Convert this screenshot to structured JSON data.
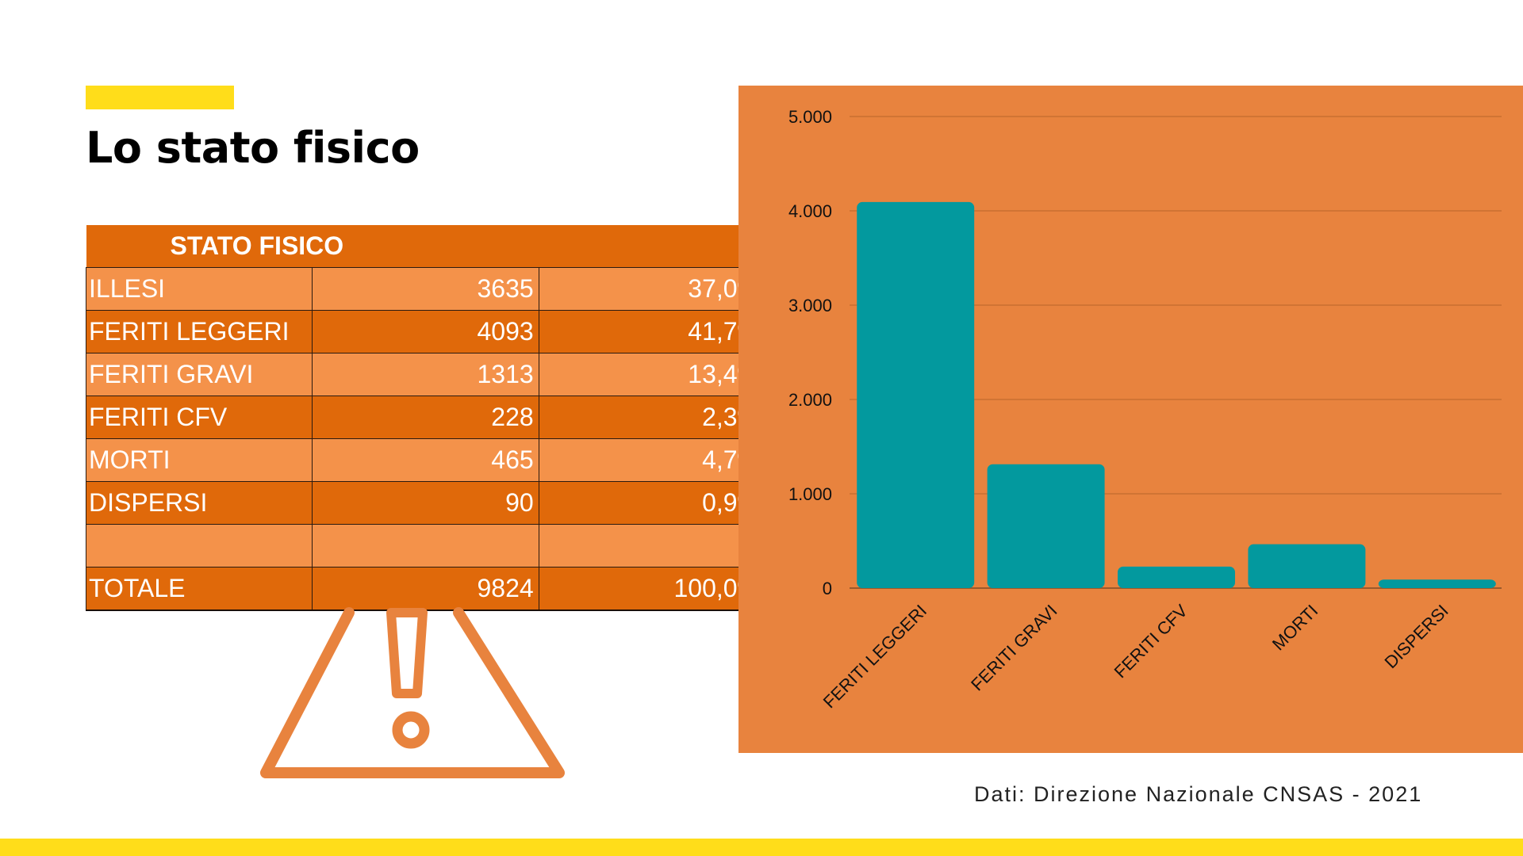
{
  "page": {
    "title": "Lo stato fisico",
    "source_note": "Dati: Direzione Nazionale CNSAS - 2021"
  },
  "colors": {
    "accent_yellow": "#FFDD1A",
    "table_header": "#E0690A",
    "row_light": "#F4924A",
    "row_dark": "#E0690A",
    "chart_bg": "#E8833E",
    "bar": "#03999E",
    "warning": "#E8833E"
  },
  "icons": {
    "warning": "warning-triangle-icon"
  },
  "table": {
    "header": "STATO FISICO",
    "rows": [
      {
        "label": "ILLESI",
        "count": "3635",
        "percent": "37,0%"
      },
      {
        "label": "FERITI LEGGERI",
        "count": "4093",
        "percent": "41,7%"
      },
      {
        "label": "FERITI GRAVI",
        "count": "1313",
        "percent": "13,4%"
      },
      {
        "label": "FERITI CFV",
        "count": "228",
        "percent": "2,3%"
      },
      {
        "label": "MORTI",
        "count": "465",
        "percent": "4,7%"
      },
      {
        "label": "DISPERSI",
        "count": "90",
        "percent": "0,9%"
      },
      {
        "label": "",
        "count": "",
        "percent": ""
      },
      {
        "label": "TOTALE",
        "count": "9824",
        "percent": "100,0%"
      }
    ]
  },
  "chart_data": {
    "type": "bar",
    "title": "",
    "xlabel": "",
    "ylabel": "",
    "categories": [
      "FERITI LEGGERI",
      "FERITI GRAVI",
      "FERITI CFV",
      "MORTI",
      "DISPERSI"
    ],
    "values": [
      4093,
      1313,
      228,
      465,
      90
    ],
    "ylim": [
      0,
      5000
    ],
    "yticks": [
      0,
      1000,
      2000,
      3000,
      4000,
      5000
    ],
    "ytick_labels": [
      "0",
      "1.000",
      "2.000",
      "3.000",
      "4.000",
      "5.000"
    ],
    "grid": true,
    "legend": "none"
  }
}
